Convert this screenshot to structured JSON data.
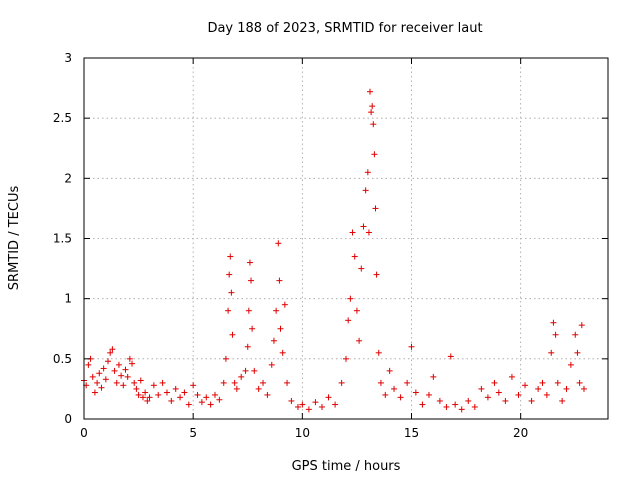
{
  "chart_data": {
    "type": "scatter",
    "title": "Day 188 of 2023, SRMTID for receiver laut",
    "xlabel": "GPS time / hours",
    "ylabel": "SRMTID / TECUs",
    "xlim": [
      0,
      24
    ],
    "ylim": [
      0,
      3
    ],
    "xticks": [
      0,
      5,
      10,
      15,
      20
    ],
    "xtick_labels": [
      "0",
      "5",
      "10",
      "15",
      "20"
    ],
    "yticks": [
      0,
      0.5,
      1,
      1.5,
      2,
      2.5,
      3
    ],
    "ytick_labels": [
      "0",
      "0.5",
      "1",
      "1.5",
      "2",
      "2.5",
      "3"
    ],
    "grid": true,
    "marker": "plus",
    "series": [
      {
        "name": "SRMTID",
        "color": "#e00000",
        "points": [
          [
            0.0,
            0.32
          ],
          [
            0.1,
            0.28
          ],
          [
            0.2,
            0.45
          ],
          [
            0.3,
            0.5
          ],
          [
            0.4,
            0.35
          ],
          [
            0.5,
            0.22
          ],
          [
            0.6,
            0.3
          ],
          [
            0.7,
            0.38
          ],
          [
            0.8,
            0.26
          ],
          [
            0.9,
            0.42
          ],
          [
            1.0,
            0.33
          ],
          [
            1.1,
            0.48
          ],
          [
            1.2,
            0.55
          ],
          [
            1.3,
            0.58
          ],
          [
            1.4,
            0.4
          ],
          [
            1.5,
            0.3
          ],
          [
            1.6,
            0.45
          ],
          [
            1.7,
            0.36
          ],
          [
            1.8,
            0.28
          ],
          [
            1.9,
            0.41
          ],
          [
            2.0,
            0.35
          ],
          [
            2.1,
            0.5
          ],
          [
            2.2,
            0.46
          ],
          [
            2.3,
            0.3
          ],
          [
            2.4,
            0.25
          ],
          [
            2.5,
            0.2
          ],
          [
            2.6,
            0.32
          ],
          [
            2.7,
            0.18
          ],
          [
            2.8,
            0.22
          ],
          [
            2.9,
            0.15
          ],
          [
            3.0,
            0.18
          ],
          [
            3.2,
            0.28
          ],
          [
            3.4,
            0.2
          ],
          [
            3.6,
            0.3
          ],
          [
            3.8,
            0.22
          ],
          [
            4.0,
            0.15
          ],
          [
            4.2,
            0.25
          ],
          [
            4.4,
            0.18
          ],
          [
            4.6,
            0.22
          ],
          [
            4.8,
            0.12
          ],
          [
            5.0,
            0.28
          ],
          [
            5.2,
            0.2
          ],
          [
            5.4,
            0.14
          ],
          [
            5.6,
            0.18
          ],
          [
            5.8,
            0.12
          ],
          [
            6.0,
            0.2
          ],
          [
            6.2,
            0.16
          ],
          [
            6.4,
            0.3
          ],
          [
            6.5,
            0.5
          ],
          [
            6.6,
            0.9
          ],
          [
            6.65,
            1.2
          ],
          [
            6.7,
            1.35
          ],
          [
            6.75,
            1.05
          ],
          [
            6.8,
            0.7
          ],
          [
            6.9,
            0.3
          ],
          [
            7.0,
            0.25
          ],
          [
            7.2,
            0.35
          ],
          [
            7.4,
            0.4
          ],
          [
            7.5,
            0.6
          ],
          [
            7.55,
            0.9
          ],
          [
            7.6,
            1.3
          ],
          [
            7.65,
            1.15
          ],
          [
            7.7,
            0.75
          ],
          [
            7.8,
            0.4
          ],
          [
            8.0,
            0.25
          ],
          [
            8.2,
            0.3
          ],
          [
            8.4,
            0.2
          ],
          [
            8.6,
            0.45
          ],
          [
            8.7,
            0.65
          ],
          [
            8.8,
            0.9
          ],
          [
            8.9,
            1.46
          ],
          [
            8.95,
            1.15
          ],
          [
            9.0,
            0.75
          ],
          [
            9.1,
            0.55
          ],
          [
            9.2,
            0.95
          ],
          [
            9.3,
            0.3
          ],
          [
            9.5,
            0.15
          ],
          [
            9.8,
            0.1
          ],
          [
            10.0,
            0.12
          ],
          [
            10.3,
            0.08
          ],
          [
            10.6,
            0.14
          ],
          [
            10.9,
            0.1
          ],
          [
            11.2,
            0.18
          ],
          [
            11.5,
            0.12
          ],
          [
            11.8,
            0.3
          ],
          [
            12.0,
            0.5
          ],
          [
            12.1,
            0.82
          ],
          [
            12.2,
            1.0
          ],
          [
            12.3,
            1.55
          ],
          [
            12.4,
            1.35
          ],
          [
            12.5,
            0.9
          ],
          [
            12.6,
            0.65
          ],
          [
            12.7,
            1.25
          ],
          [
            12.8,
            1.6
          ],
          [
            12.9,
            1.9
          ],
          [
            13.0,
            2.05
          ],
          [
            13.05,
            1.55
          ],
          [
            13.1,
            2.72
          ],
          [
            13.15,
            2.55
          ],
          [
            13.2,
            2.6
          ],
          [
            13.25,
            2.45
          ],
          [
            13.3,
            2.2
          ],
          [
            13.35,
            1.75
          ],
          [
            13.4,
            1.2
          ],
          [
            13.5,
            0.55
          ],
          [
            13.6,
            0.3
          ],
          [
            13.8,
            0.2
          ],
          [
            14.0,
            0.4
          ],
          [
            14.2,
            0.25
          ],
          [
            14.5,
            0.18
          ],
          [
            14.8,
            0.3
          ],
          [
            15.0,
            0.6
          ],
          [
            15.2,
            0.22
          ],
          [
            15.5,
            0.12
          ],
          [
            15.8,
            0.2
          ],
          [
            16.0,
            0.35
          ],
          [
            16.3,
            0.15
          ],
          [
            16.6,
            0.1
          ],
          [
            16.8,
            0.52
          ],
          [
            17.0,
            0.12
          ],
          [
            17.3,
            0.08
          ],
          [
            17.6,
            0.15
          ],
          [
            17.9,
            0.1
          ],
          [
            18.2,
            0.25
          ],
          [
            18.5,
            0.18
          ],
          [
            18.8,
            0.3
          ],
          [
            19.0,
            0.22
          ],
          [
            19.3,
            0.15
          ],
          [
            19.6,
            0.35
          ],
          [
            19.9,
            0.2
          ],
          [
            20.2,
            0.28
          ],
          [
            20.5,
            0.15
          ],
          [
            20.8,
            0.25
          ],
          [
            21.0,
            0.3
          ],
          [
            21.2,
            0.2
          ],
          [
            21.4,
            0.55
          ],
          [
            21.5,
            0.8
          ],
          [
            21.6,
            0.7
          ],
          [
            21.7,
            0.3
          ],
          [
            21.9,
            0.15
          ],
          [
            22.1,
            0.25
          ],
          [
            22.3,
            0.45
          ],
          [
            22.5,
            0.7
          ],
          [
            22.6,
            0.55
          ],
          [
            22.7,
            0.3
          ],
          [
            22.8,
            0.78
          ],
          [
            22.9,
            0.25
          ]
        ]
      }
    ]
  }
}
